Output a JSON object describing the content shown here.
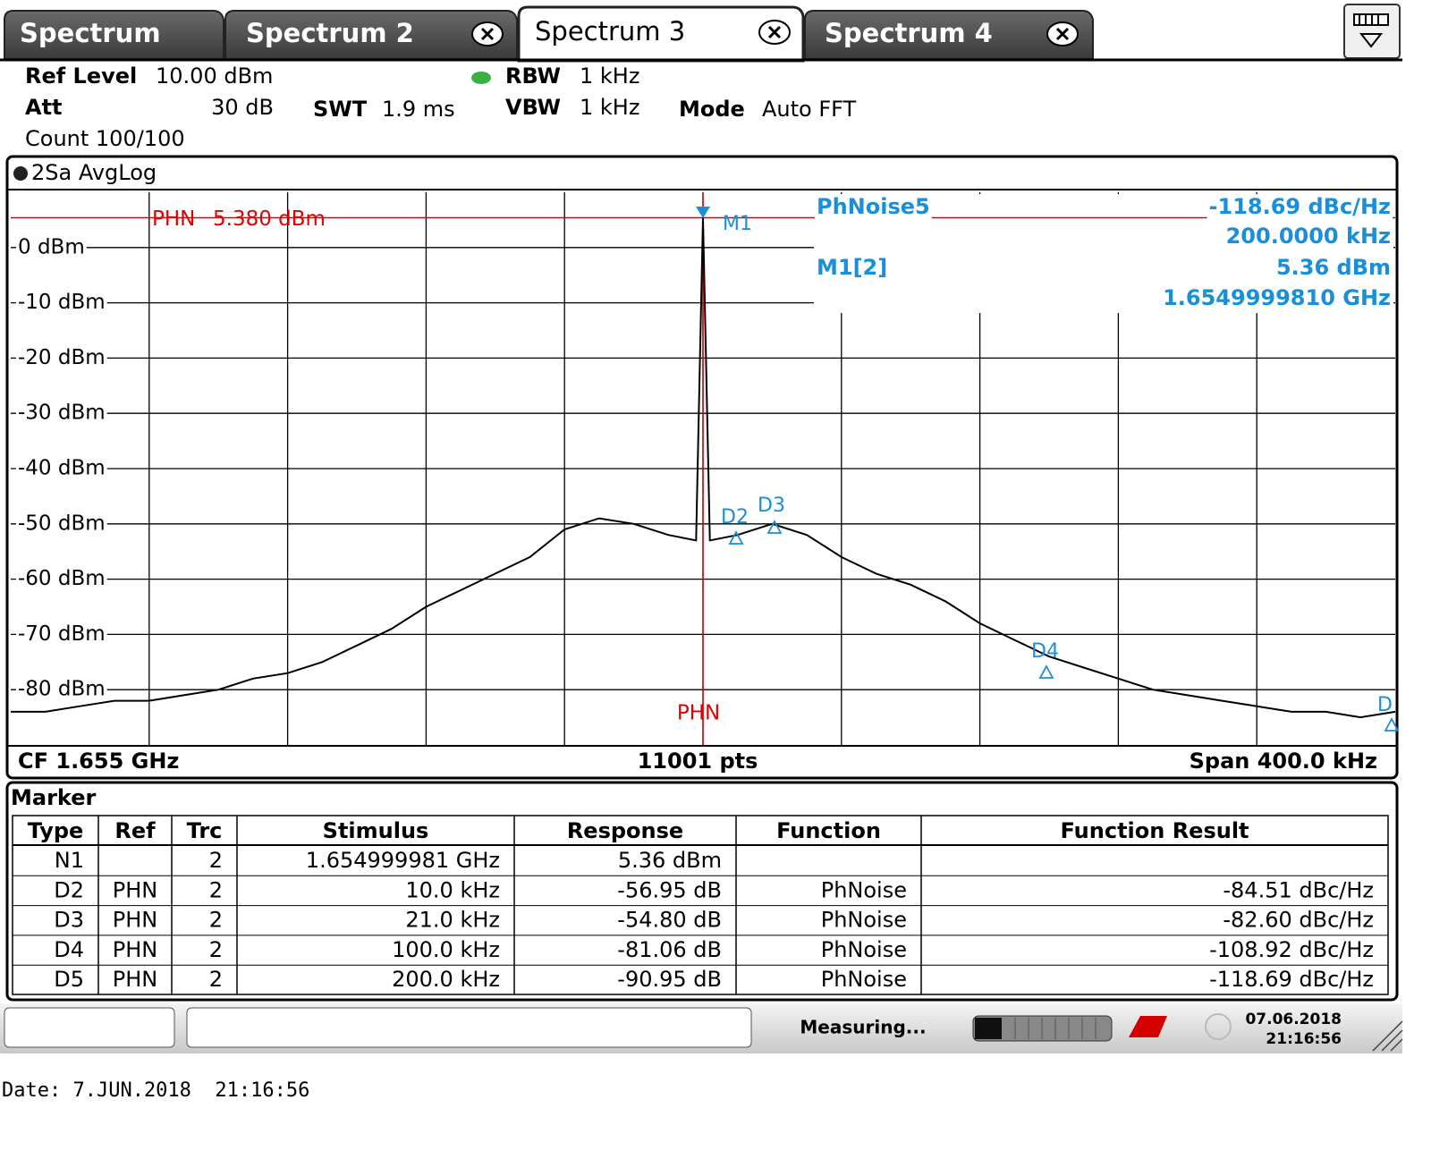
{
  "tabs": [
    "Spectrum",
    "Spectrum 2",
    "Spectrum 3",
    "Spectrum 4"
  ],
  "settings": {
    "ref_level": {
      "label": "Ref Level",
      "value": "10.00 dBm"
    },
    "att": {
      "label": "Att",
      "value": "30 dB"
    },
    "count": "Count 100/100",
    "swt": {
      "label": "SWT",
      "value": "1.9 ms"
    },
    "rbw": {
      "label": "RBW",
      "value": "1 kHz"
    },
    "vbw": {
      "label": "VBW",
      "value": "1 kHz"
    },
    "mode": {
      "label": "Mode",
      "value": "Auto FFT"
    }
  },
  "chart_data": {
    "type": "line",
    "title": "2Sa AvgLog",
    "x": [
      -200,
      -190,
      -180,
      -170,
      -160,
      -150,
      -140,
      -130,
      -120,
      -110,
      -100,
      -90,
      -80,
      -70,
      -60,
      -50,
      -40,
      -30,
      -20,
      -10,
      -2,
      0,
      2,
      10,
      20,
      30,
      40,
      50,
      60,
      70,
      80,
      90,
      100,
      110,
      120,
      130,
      140,
      150,
      160,
      170,
      180,
      190,
      200
    ],
    "values": [
      -84,
      -84,
      -83,
      -82,
      -82,
      -81,
      -80,
      -78,
      -77,
      -75,
      -72,
      -69,
      -65,
      -62,
      -59,
      -56,
      -51,
      -49,
      -50,
      -52,
      -53,
      5.4,
      -53,
      -52,
      -50,
      -52,
      -56,
      -59,
      -61,
      -64,
      -68,
      -71,
      -74,
      -76,
      -78,
      -80,
      -81,
      -82,
      -83,
      -84,
      -84,
      -85,
      -84
    ],
    "color": "#000000",
    "xlim": [
      -200,
      200
    ],
    "ylim": [
      -90,
      10
    ],
    "yticks": [
      {
        "value": 0,
        "label": "0 dBm"
      },
      {
        "value": -10,
        "label": "-10 dBm"
      },
      {
        "value": -20,
        "label": "-20 dBm"
      },
      {
        "value": -30,
        "label": "-30 dBm"
      },
      {
        "value": -40,
        "label": "-40 dBm"
      },
      {
        "value": -50,
        "label": "-50 dBm"
      },
      {
        "value": -60,
        "label": "-60 dBm"
      },
      {
        "value": -70,
        "label": "-70 dBm"
      },
      {
        "value": -80,
        "label": "-80 dBm"
      }
    ],
    "grid": true,
    "reference_line": {
      "name": "PHN",
      "label": "5.380 dBm",
      "value": 5.38
    },
    "center_line_label": "PHN",
    "marker_labels": [
      "M1",
      "D2",
      "D3",
      "D4",
      "D"
    ],
    "info": {
      "function": "PhNoise5",
      "function_result": "-118.69 dBc/Hz",
      "offset": "200.0000 kHz",
      "marker": "M1[2]",
      "level": "5.36 dBm",
      "frequency": "1.6549999810 GHz"
    },
    "footer": {
      "cf": "CF 1.655 GHz",
      "points": "11001 pts",
      "span": "Span 400.0 kHz"
    }
  },
  "marker_table": {
    "title": "Marker",
    "columns": [
      "Type",
      "Ref",
      "Trc",
      "Stimulus",
      "Response",
      "Function",
      "Function Result"
    ],
    "rows": [
      [
        "N1",
        "",
        "2",
        "1.654999981 GHz",
        "5.36 dBm",
        "",
        ""
      ],
      [
        "D2",
        "PHN",
        "2",
        "10.0 kHz",
        "-56.95 dB",
        "PhNoise",
        "-84.51 dBc/Hz"
      ],
      [
        "D3",
        "PHN",
        "2",
        "21.0 kHz",
        "-54.80 dB",
        "PhNoise",
        "-82.60 dBc/Hz"
      ],
      [
        "D4",
        "PHN",
        "2",
        "100.0 kHz",
        "-81.06 dB",
        "PhNoise",
        "-108.92 dBc/Hz"
      ],
      [
        "D5",
        "PHN",
        "2",
        "200.0 kHz",
        "-90.95 dB",
        "PhNoise",
        "-118.69 dBc/Hz"
      ]
    ]
  },
  "status": {
    "state": "Measuring...",
    "date": "07.06.2018",
    "time": "21:16:56"
  },
  "footer_date": "Date: 7.JUN.2018  21:16:56"
}
